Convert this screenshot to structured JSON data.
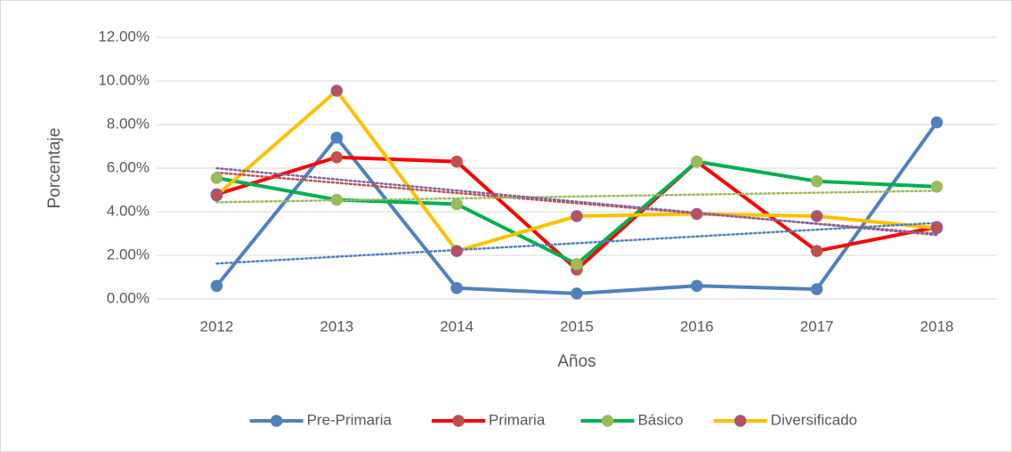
{
  "chart_data": {
    "type": "line",
    "x_label": "Años",
    "y_label": "Porcentaje",
    "categories": [
      "2012",
      "2013",
      "2014",
      "2015",
      "2016",
      "2017",
      "2018"
    ],
    "ylim": [
      0,
      12
    ],
    "yticks": [
      {
        "value": 0,
        "label": "0.00%"
      },
      {
        "value": 2,
        "label": "2.00%"
      },
      {
        "value": 4,
        "label": "4.00%"
      },
      {
        "value": 6,
        "label": "6.00%"
      },
      {
        "value": 8,
        "label": "8.00%"
      },
      {
        "value": 10,
        "label": "10.00%"
      },
      {
        "value": 12,
        "label": "12.00%"
      }
    ],
    "grid": true,
    "trendline": true,
    "legend": "bottom",
    "series": [
      {
        "name": "Pre-Primaria",
        "color": "#4f81bd",
        "marker_color": "#4f81bd",
        "marker_edge": "#4f81bd",
        "trend_color": "#4f81bd",
        "values": [
          0.6,
          7.4,
          0.5,
          0.25,
          0.6,
          0.45,
          8.1
        ]
      },
      {
        "name": "Primaria",
        "color": "#ff0000",
        "marker_color": "#c0504d",
        "marker_edge": "#c0504d",
        "trend_color": "#c0504d",
        "values": [
          4.8,
          6.5,
          6.3,
          1.35,
          6.3,
          2.2,
          3.3
        ]
      },
      {
        "name": "Básico",
        "color": "#00b050",
        "marker_color": "#9bbb59",
        "marker_edge": "#9bbb59",
        "trend_color": "#9bbb59",
        "values": [
          5.55,
          4.55,
          4.35,
          1.6,
          6.3,
          5.4,
          5.15
        ]
      },
      {
        "name": "Diversificado",
        "color": "#ffc000",
        "marker_color": "#c0504d",
        "marker_edge": "#7f5fb3",
        "trend_color": "#8064a2",
        "values": [
          4.75,
          9.55,
          2.2,
          3.8,
          3.9,
          3.8,
          3.25
        ]
      }
    ]
  }
}
